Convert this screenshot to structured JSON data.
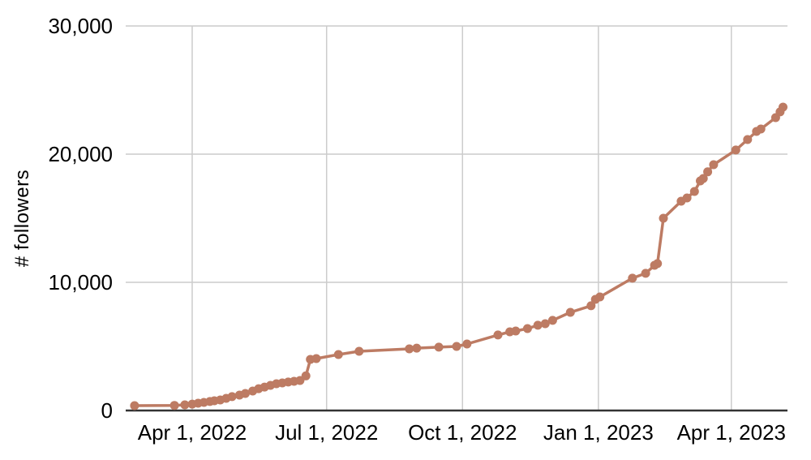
{
  "chart_data": {
    "type": "line",
    "ylabel": "# followers",
    "series_name": "followers",
    "legend": "none",
    "grid": true,
    "x_domain": [
      "2022-02-15",
      "2023-05-09"
    ],
    "y_domain": [
      0,
      30000
    ],
    "x_ticks": [
      {
        "date": "2022-04-01",
        "label": "Apr 1, 2022"
      },
      {
        "date": "2022-07-01",
        "label": "Jul 1, 2022"
      },
      {
        "date": "2022-10-01",
        "label": "Oct 1, 2022"
      },
      {
        "date": "2023-01-01",
        "label": "Jan 1, 2023"
      },
      {
        "date": "2023-04-01",
        "label": "Apr 1, 2023"
      }
    ],
    "y_ticks": [
      {
        "value": 0,
        "label": "0"
      },
      {
        "value": 10000,
        "label": "10,000"
      },
      {
        "value": 20000,
        "label": "20,000"
      },
      {
        "value": 30000,
        "label": "30,000"
      }
    ],
    "colors": {
      "line": "#bd7b63",
      "grid": "#cccccc",
      "axis": "#333333",
      "text": "#000000",
      "background": "#ffffff"
    },
    "points": [
      [
        "2022-02-21",
        380
      ],
      [
        "2022-03-20",
        400
      ],
      [
        "2022-03-27",
        440
      ],
      [
        "2022-04-01",
        500
      ],
      [
        "2022-04-05",
        570
      ],
      [
        "2022-04-09",
        630
      ],
      [
        "2022-04-13",
        700
      ],
      [
        "2022-04-16",
        760
      ],
      [
        "2022-04-20",
        820
      ],
      [
        "2022-04-24",
        950
      ],
      [
        "2022-04-28",
        1080
      ],
      [
        "2022-05-03",
        1200
      ],
      [
        "2022-05-07",
        1330
      ],
      [
        "2022-05-12",
        1520
      ],
      [
        "2022-05-16",
        1700
      ],
      [
        "2022-05-20",
        1830
      ],
      [
        "2022-05-24",
        1960
      ],
      [
        "2022-05-28",
        2090
      ],
      [
        "2022-06-01",
        2150
      ],
      [
        "2022-06-05",
        2220
      ],
      [
        "2022-06-09",
        2280
      ],
      [
        "2022-06-13",
        2340
      ],
      [
        "2022-06-17",
        2700
      ],
      [
        "2022-06-20",
        3990
      ],
      [
        "2022-06-24",
        4050
      ],
      [
        "2022-07-09",
        4370
      ],
      [
        "2022-07-23",
        4620
      ],
      [
        "2022-08-26",
        4810
      ],
      [
        "2022-08-31",
        4870
      ],
      [
        "2022-09-15",
        4940
      ],
      [
        "2022-09-27",
        5000
      ],
      [
        "2022-10-04",
        5190
      ],
      [
        "2022-10-25",
        5890
      ],
      [
        "2022-11-02",
        6140
      ],
      [
        "2022-11-06",
        6200
      ],
      [
        "2022-11-14",
        6390
      ],
      [
        "2022-11-21",
        6650
      ],
      [
        "2022-11-26",
        6770
      ],
      [
        "2022-12-01",
        7030
      ],
      [
        "2022-12-13",
        7660
      ],
      [
        "2022-12-27",
        8170
      ],
      [
        "2022-12-30",
        8670
      ],
      [
        "2023-01-02",
        8860
      ],
      [
        "2023-01-24",
        10320
      ],
      [
        "2023-02-02",
        10700
      ],
      [
        "2023-02-08",
        11330
      ],
      [
        "2023-02-10",
        11460
      ],
      [
        "2023-02-14",
        15000
      ],
      [
        "2023-02-26",
        16330
      ],
      [
        "2023-03-02",
        16580
      ],
      [
        "2023-03-07",
        17090
      ],
      [
        "2023-03-11",
        17910
      ],
      [
        "2023-03-13",
        18100
      ],
      [
        "2023-03-16",
        18620
      ],
      [
        "2023-03-20",
        19180
      ],
      [
        "2023-04-04",
        20320
      ],
      [
        "2023-04-12",
        21140
      ],
      [
        "2023-04-18",
        21770
      ],
      [
        "2023-04-21",
        21960
      ],
      [
        "2023-05-01",
        22850
      ],
      [
        "2023-05-04",
        23300
      ],
      [
        "2023-05-06",
        23670
      ]
    ]
  }
}
